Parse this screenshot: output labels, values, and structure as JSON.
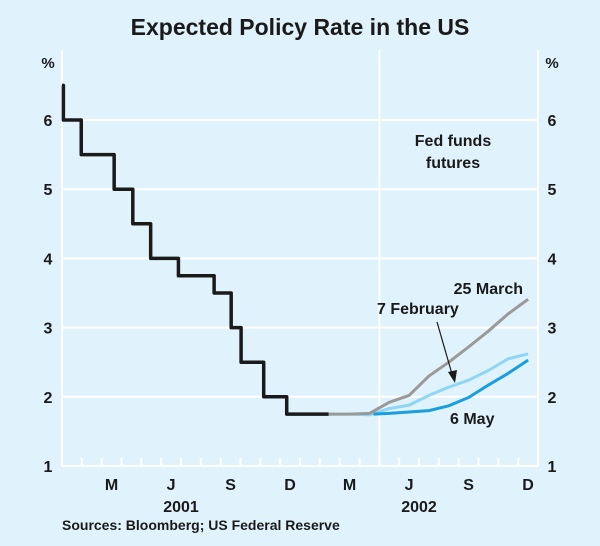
{
  "chart_data": {
    "type": "line",
    "title": "Expected Policy Rate in the US",
    "ylabel_left": "%",
    "ylabel_right": "%",
    "ylim": [
      1,
      6.5
    ],
    "yticks": [
      1,
      2,
      3,
      4,
      5,
      6
    ],
    "x_unit": "months since start of Jan 2001",
    "xlim": [
      0,
      24
    ],
    "xtick_labels": [
      {
        "label": "M",
        "month": 2
      },
      {
        "label": "J",
        "month": 5
      },
      {
        "label": "S",
        "month": 8
      },
      {
        "label": "D",
        "month": 11
      },
      {
        "label": "M",
        "month": 14
      },
      {
        "label": "J",
        "month": 17
      },
      {
        "label": "S",
        "month": 20
      },
      {
        "label": "D",
        "month": 23
      }
    ],
    "year_labels": [
      {
        "label": "2001",
        "month": 6
      },
      {
        "label": "2002",
        "month": 18
      }
    ],
    "divider_month": 16,
    "grid": true,
    "annotation": "Fed funds\nfutures",
    "series": [
      {
        "name": "Policy rate",
        "color": "#1a1a1a",
        "step": true,
        "x": [
          0,
          0.07,
          0.97,
          2.63,
          3.57,
          4.47,
          5.87,
          7.67,
          8.53,
          9.03,
          10.17,
          11.33,
          13.45
        ],
        "y": [
          6.5,
          6.0,
          5.5,
          5.0,
          4.5,
          4.0,
          3.75,
          3.5,
          3.0,
          2.5,
          2.0,
          1.75,
          1.75
        ]
      },
      {
        "name": "7 February",
        "color": "#8ed6f4",
        "x": [
          13.45,
          14.5,
          15.5,
          16.5,
          17.5,
          18.5,
          19.5,
          20.5,
          21.5,
          22.5,
          23.5
        ],
        "y": [
          1.75,
          1.75,
          1.74,
          1.83,
          1.88,
          2.02,
          2.14,
          2.24,
          2.38,
          2.55,
          2.62
        ]
      },
      {
        "name": "25 March",
        "color": "#9a9a9a",
        "x": [
          13.45,
          14.5,
          15.5,
          16.5,
          17.5,
          18.5,
          19.5,
          20.5,
          21.5,
          22.5,
          23.5
        ],
        "y": [
          1.75,
          1.75,
          1.76,
          1.92,
          2.02,
          2.3,
          2.5,
          2.72,
          2.95,
          3.2,
          3.41
        ]
      },
      {
        "name": "6 May",
        "color": "#1a9ee0",
        "x": [
          15.7,
          16.5,
          17.5,
          18.5,
          19.5,
          20.5,
          21.5,
          22.5,
          23.5
        ],
        "y": [
          1.75,
          1.76,
          1.78,
          1.8,
          1.87,
          1.99,
          2.17,
          2.34,
          2.53
        ]
      }
    ],
    "labels": [
      {
        "text": "25 March",
        "series": "25 March"
      },
      {
        "text": "7 February",
        "series": "7 February"
      },
      {
        "text": "6 May",
        "series": "6 May"
      }
    ]
  },
  "source": "Sources: Bloomberg; US Federal Reserve"
}
